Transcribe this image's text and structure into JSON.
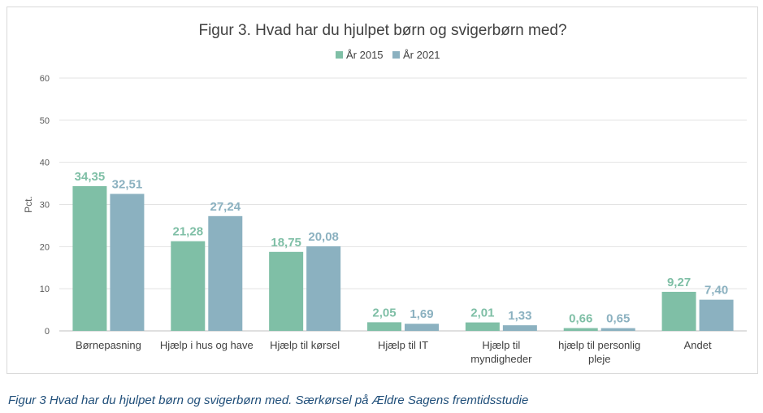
{
  "chart_data": {
    "type": "bar",
    "title": "Figur 3. Hvad har du hjulpet børn og svigerbørn med?",
    "ylabel": "Pct.",
    "xlabel": "",
    "ylim": [
      0,
      60
    ],
    "yticks": [
      0,
      10,
      20,
      30,
      40,
      50,
      60
    ],
    "grid": true,
    "legend_position": "top-center",
    "categories": [
      [
        "Børnepasning"
      ],
      [
        "Hjælp i hus og have"
      ],
      [
        "Hjælp til kørsel"
      ],
      [
        "Hjælp til IT"
      ],
      [
        "Hjælp til",
        "myndigheder"
      ],
      [
        "hjælp til personlig",
        "pleje"
      ],
      [
        "Andet"
      ]
    ],
    "series": [
      {
        "name": "År 2015",
        "color": "#7fbfa6",
        "values": [
          34.35,
          21.28,
          18.75,
          2.05,
          2.01,
          0.66,
          9.27
        ],
        "labels": [
          "34,35",
          "21,28",
          "18,75",
          "2,05",
          "2,01",
          "0,66",
          "9,27"
        ]
      },
      {
        "name": "År 2021",
        "color": "#8bb1c0",
        "values": [
          32.51,
          27.24,
          20.08,
          1.69,
          1.33,
          0.65,
          7.4
        ],
        "labels": [
          "32,51",
          "27,24",
          "20,08",
          "1,69",
          "1,33",
          "0,65",
          "7,40"
        ]
      }
    ]
  },
  "caption": "Figur 3 Hvad har du hjulpet børn og svigerbørn med. Særkørsel på Ældre Sagens fremtidsstudie"
}
